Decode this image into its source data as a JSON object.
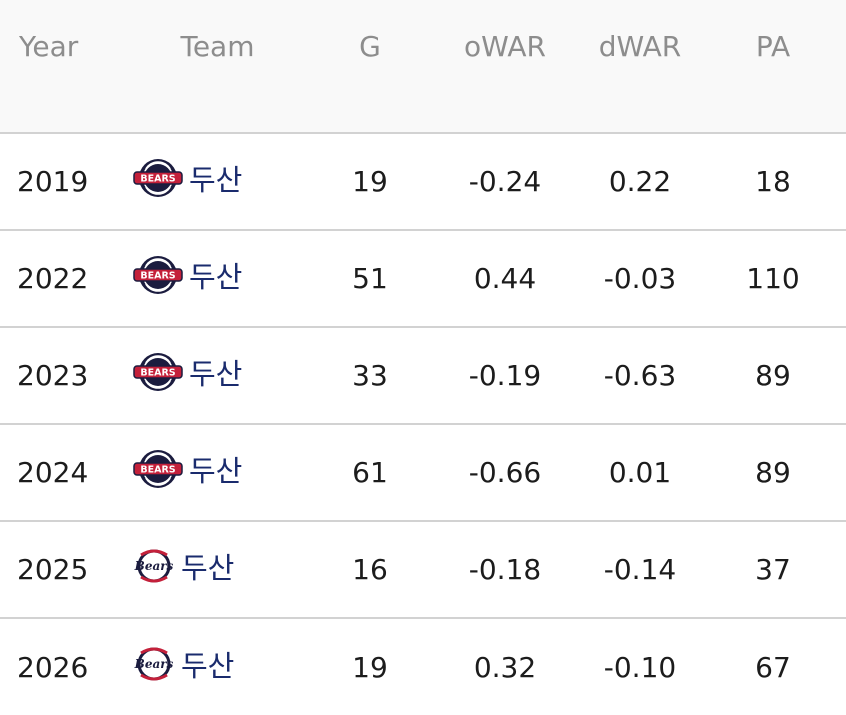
{
  "table": {
    "headers": {
      "year": "Year",
      "team": "Team",
      "g": "G",
      "owar": "oWAR",
      "dwar": "dWAR",
      "pa": "PA"
    },
    "rows": [
      {
        "year": "2019",
        "team": "두산",
        "logo": "bears-logo-circle",
        "g": "19",
        "owar": "-0.24",
        "dwar": "0.22",
        "pa": "18"
      },
      {
        "year": "2022",
        "team": "두산",
        "logo": "bears-logo-circle",
        "g": "51",
        "owar": "0.44",
        "dwar": "-0.03",
        "pa": "110"
      },
      {
        "year": "2023",
        "team": "두산",
        "logo": "bears-logo-circle",
        "g": "33",
        "owar": "-0.19",
        "dwar": "-0.63",
        "pa": "89"
      },
      {
        "year": "2024",
        "team": "두산",
        "logo": "bears-logo-circle",
        "g": "61",
        "owar": "-0.66",
        "dwar": "0.01",
        "pa": "89"
      },
      {
        "year": "2025",
        "team": "두산",
        "logo": "bears-logo-script",
        "g": "16",
        "owar": "-0.18",
        "dwar": "-0.14",
        "pa": "37"
      },
      {
        "year": "2026",
        "team": "두산",
        "logo": "bears-logo-script",
        "g": "19",
        "owar": "0.32",
        "dwar": "-0.10",
        "pa": "67"
      }
    ]
  },
  "colors": {
    "header_bg": "#f9f9f9",
    "header_text": "#8d8d8d",
    "team_text": "#1a2b6d",
    "divider": "#d2d2d2",
    "logo_red": "#c4203a",
    "logo_navy": "#1b1c3f"
  }
}
